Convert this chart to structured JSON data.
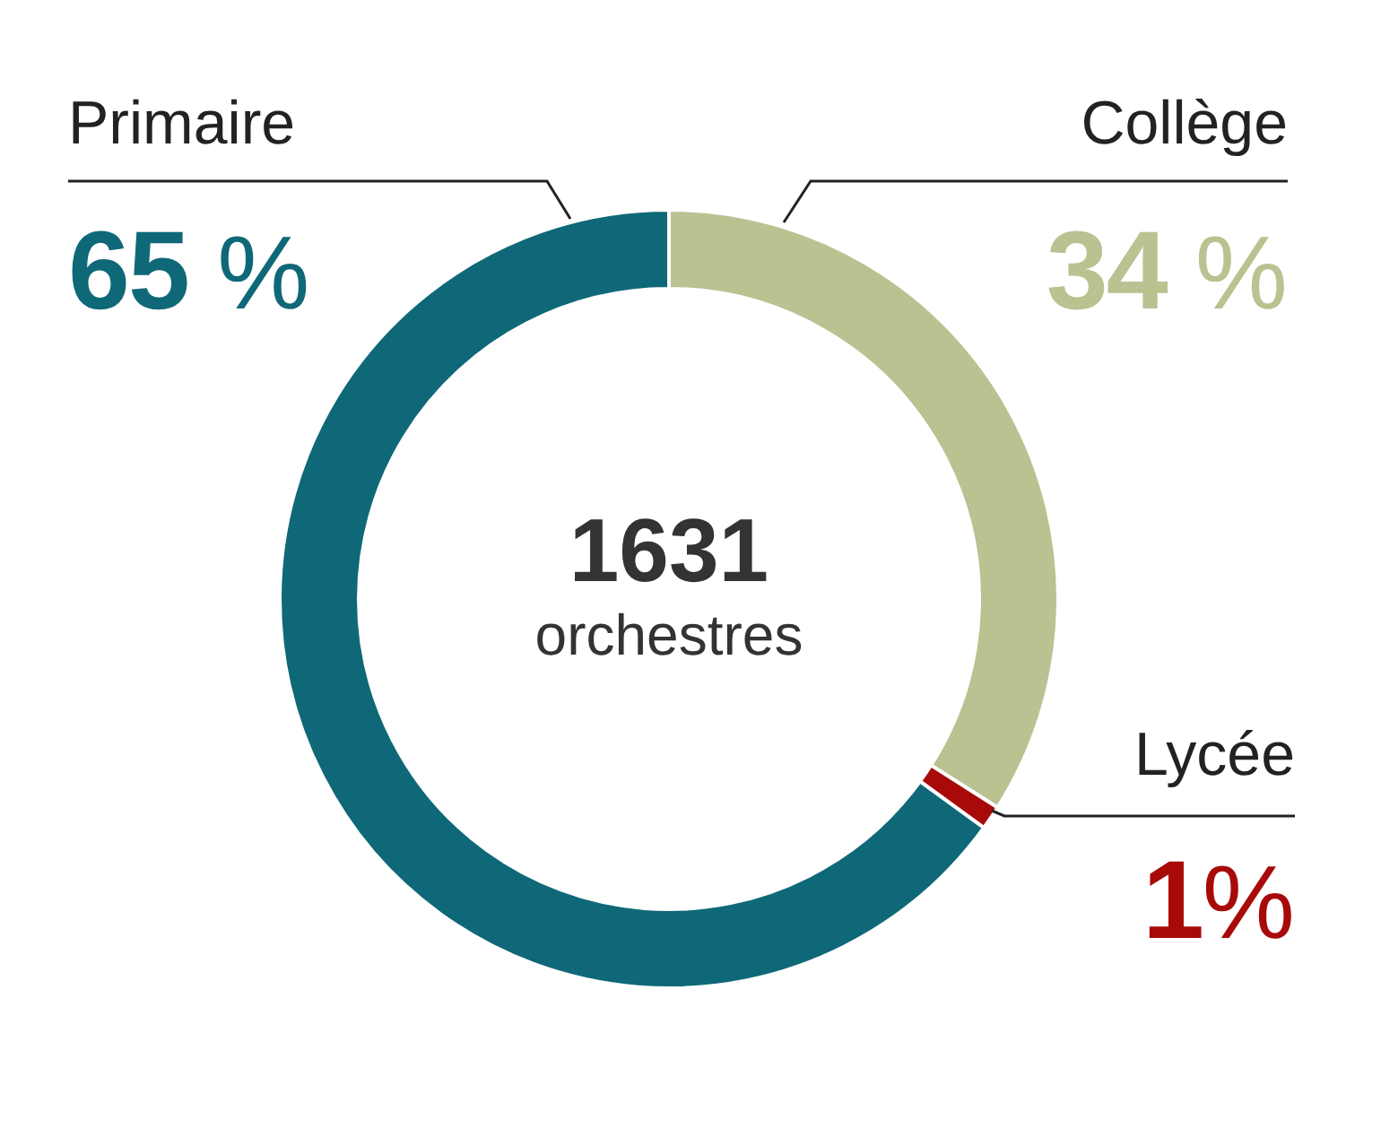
{
  "chart_data": {
    "type": "donut",
    "categories": [
      "Collège",
      "Lycée",
      "Primaire"
    ],
    "values": [
      34,
      1,
      65
    ],
    "colors": [
      "#b9c290",
      "#a80a0a",
      "#0f6878"
    ],
    "value_labels": [
      "34 %",
      "1%",
      "65 %"
    ],
    "annotations": [
      "1631",
      "orchestres"
    ]
  }
}
